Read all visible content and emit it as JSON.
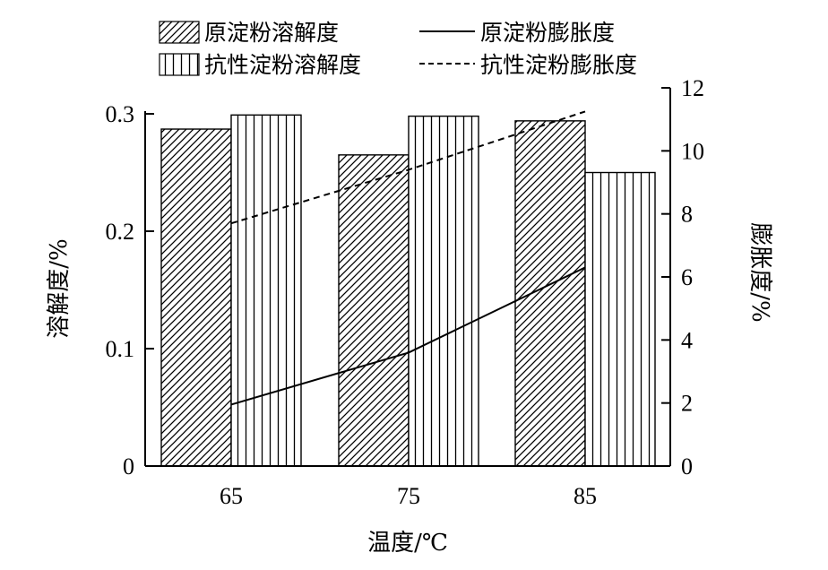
{
  "chart_data": {
    "type": "bar",
    "categories": [
      "65",
      "75",
      "85"
    ],
    "xlabel": "温度/℃",
    "ylabel": "溶解度/%",
    "y2label": "膨胀度/%",
    "ylim": [
      0,
      0.3
    ],
    "y2lim": [
      0,
      12
    ],
    "yticks": [
      "0",
      "0.1",
      "0.2",
      "0.3"
    ],
    "y2ticks": [
      "0",
      "2",
      "4",
      "6",
      "8",
      "10",
      "12"
    ],
    "bar_series": [
      {
        "name": "原淀粉溶解度",
        "pattern": "diagonal",
        "values": [
          0.287,
          0.265,
          0.294
        ]
      },
      {
        "name": "抗性淀粉溶解度",
        "pattern": "vertical",
        "values": [
          0.299,
          0.298,
          0.25
        ]
      }
    ],
    "line_series": [
      {
        "name": "原淀粉膨胀度",
        "style": "solid",
        "axis": "right",
        "values": [
          1.95,
          3.6,
          6.3
        ]
      },
      {
        "name": "抗性淀粉膨胀度",
        "style": "dashed",
        "axis": "right",
        "values": [
          7.7,
          9.4,
          11.25
        ]
      }
    ],
    "legend_position": "top",
    "grid": false
  }
}
